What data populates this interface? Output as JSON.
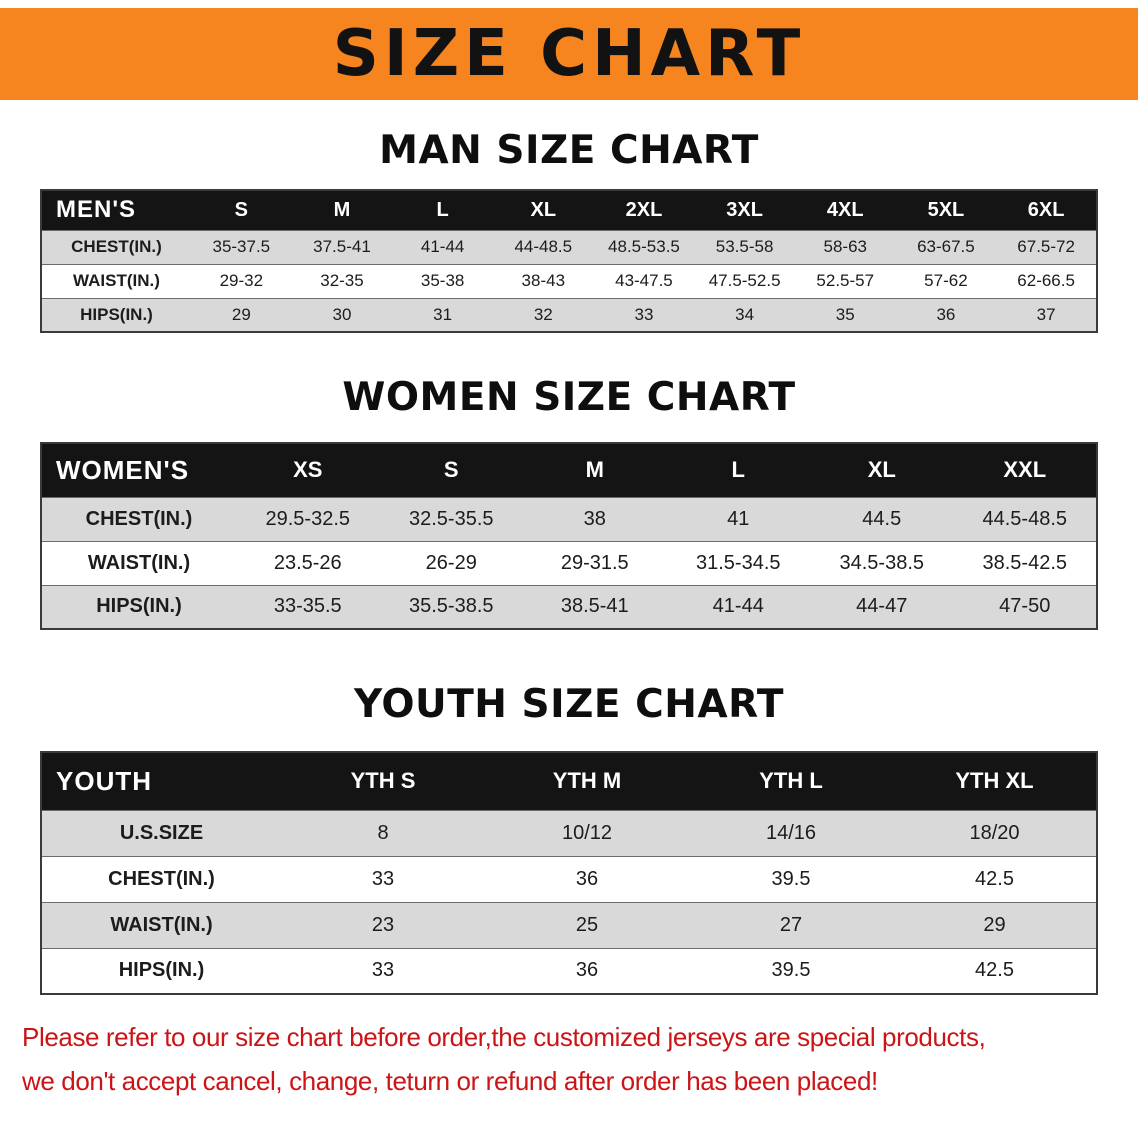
{
  "banner": {
    "title": "SIZE CHART"
  },
  "colors": {
    "banner_bg": "#f6851f",
    "table_header_bg": "#141414",
    "row_stripe_gray": "#d9d9d9",
    "disclaimer_red": "#cc1417"
  },
  "sections": [
    {
      "heading": "MAN SIZE CHART",
      "table": {
        "header": [
          "MEN'S",
          "S",
          "M",
          "L",
          "XL",
          "2XL",
          "3XL",
          "4XL",
          "5XL",
          "6XL"
        ],
        "rows": [
          [
            "CHEST(IN.)",
            "35-37.5",
            "37.5-41",
            "41-44",
            "44-48.5",
            "48.5-53.5",
            "53.5-58",
            "58-63",
            "63-67.5",
            "67.5-72"
          ],
          [
            "WAIST(IN.)",
            "29-32",
            "32-35",
            "35-38",
            "38-43",
            "43-47.5",
            "47.5-52.5",
            "52.5-57",
            "57-62",
            "62-66.5"
          ],
          [
            "HIPS(IN.)",
            "29",
            "30",
            "31",
            "32",
            "33",
            "34",
            "35",
            "36",
            "37"
          ]
        ]
      }
    },
    {
      "heading": "WOMEN SIZE CHART",
      "table": {
        "header": [
          "WOMEN'S",
          "XS",
          "S",
          "M",
          "L",
          "XL",
          "XXL"
        ],
        "rows": [
          [
            "CHEST(IN.)",
            "29.5-32.5",
            "32.5-35.5",
            "38",
            "41",
            "44.5",
            "44.5-48.5"
          ],
          [
            "WAIST(IN.)",
            "23.5-26",
            "26-29",
            "29-31.5",
            "31.5-34.5",
            "34.5-38.5",
            "38.5-42.5"
          ],
          [
            "HIPS(IN.)",
            "33-35.5",
            "35.5-38.5",
            "38.5-41",
            "41-44",
            "44-47",
            "47-50"
          ]
        ]
      }
    },
    {
      "heading": "YOUTH SIZE CHART",
      "table": {
        "header": [
          "YOUTH",
          "YTH S",
          "YTH M",
          "YTH L",
          "YTH XL"
        ],
        "rows": [
          [
            "U.S.SIZE",
            "8",
            "10/12",
            "14/16",
            "18/20"
          ],
          [
            "CHEST(IN.)",
            "33",
            "36",
            "39.5",
            "42.5"
          ],
          [
            "WAIST(IN.)",
            "23",
            "25",
            "27",
            "29"
          ],
          [
            "HIPS(IN.)",
            "33",
            "36",
            "39.5",
            "42.5"
          ]
        ]
      }
    }
  ],
  "disclaimer": {
    "line1": "Please refer to our size chart before order,the customized jerseys are special products,",
    "line2": "we don't accept cancel, change, teturn or refund after order has been placed!"
  }
}
